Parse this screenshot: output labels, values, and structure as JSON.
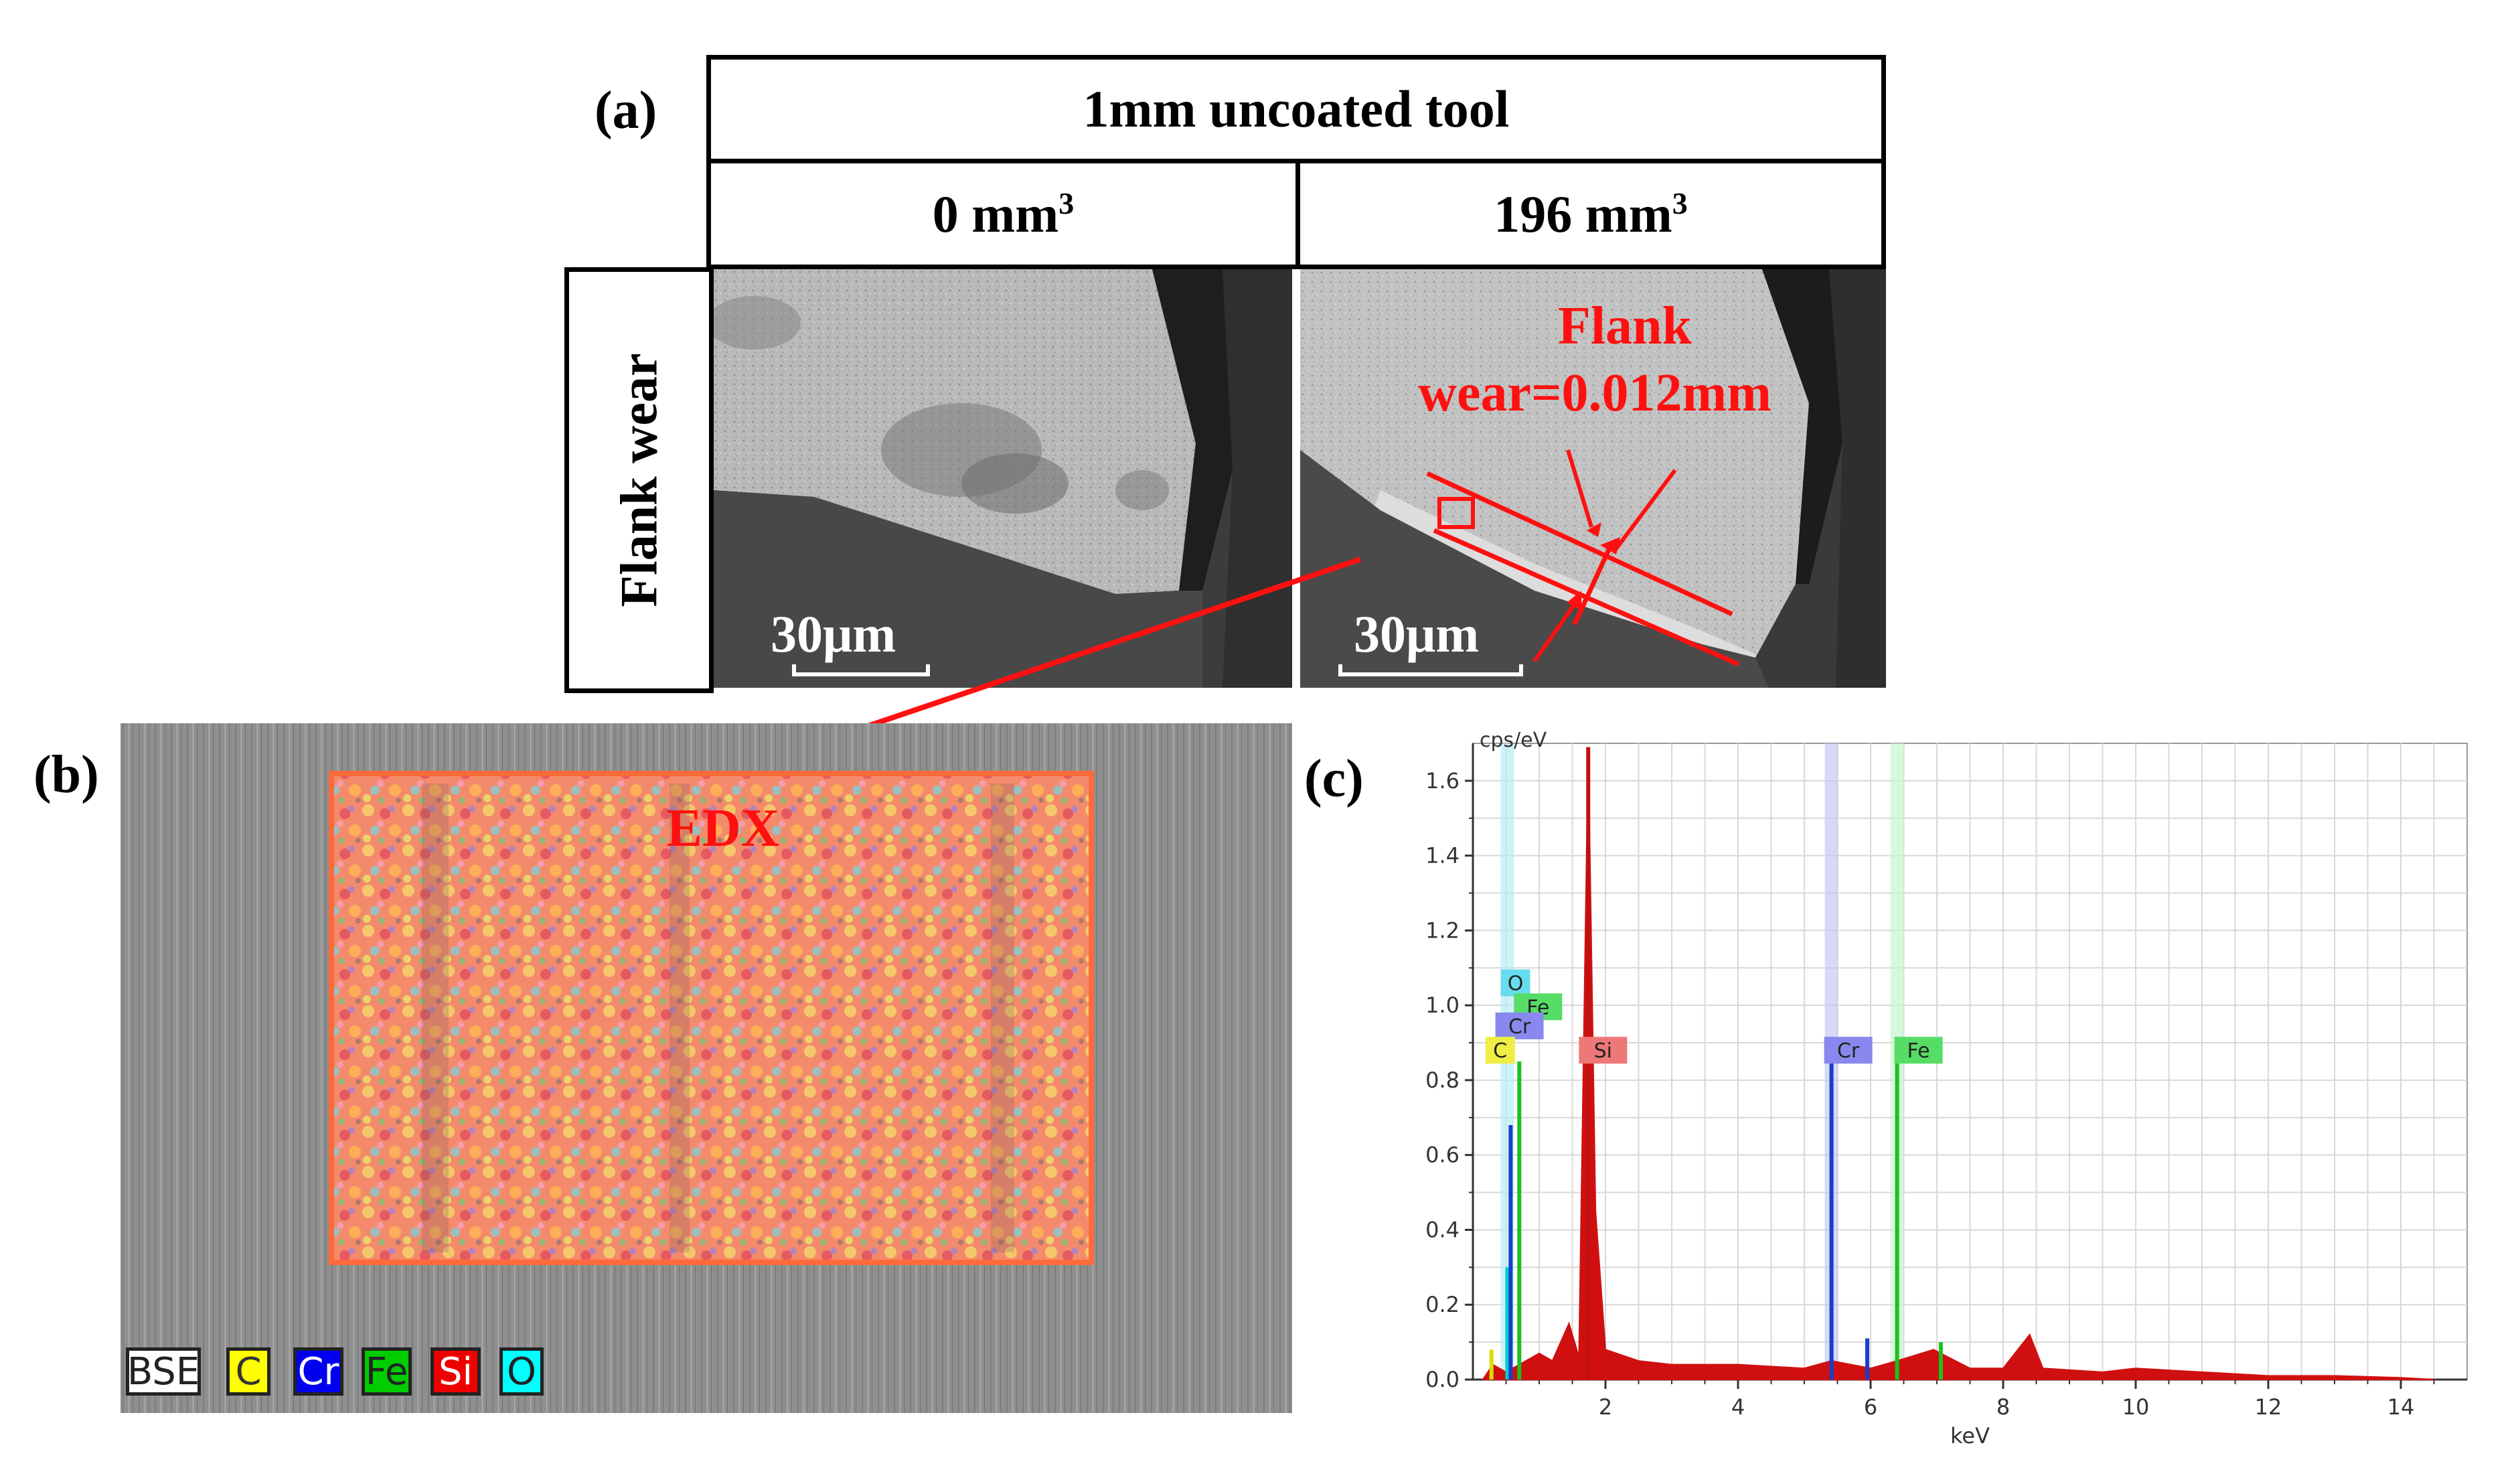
{
  "panel_labels": {
    "a": "(a)",
    "b": "(b)",
    "c": "(c)"
  },
  "table": {
    "header": "1mm uncoated tool",
    "volume_0": "0 mm",
    "volume_196": "196 mm",
    "superscript": "3",
    "row_label": "Flank wear"
  },
  "sem": {
    "scale_left": "30μm",
    "scale_right": "30μm",
    "flank_line1": "Flank",
    "flank_line2": "wear=0.012mm"
  },
  "edx": {
    "label": "EDX",
    "legend": [
      {
        "label": "BSE",
        "color": "#ffffff",
        "text_color": "#222222"
      },
      {
        "label": "C",
        "color": "#ffff00",
        "text_color": "#333333"
      },
      {
        "label": "Cr",
        "color": "#0000ee",
        "text_color": "#ffffff"
      },
      {
        "label": "Fe",
        "color": "#00cc00",
        "text_color": "#222222"
      },
      {
        "label": "Si",
        "color": "#ee0000",
        "text_color": "#ffffff"
      },
      {
        "label": "O",
        "color": "#00ffff",
        "text_color": "#222222"
      }
    ]
  },
  "chart_data": {
    "type": "line",
    "title": "",
    "xlabel": "keV",
    "ylabel": "cps/eV",
    "xlim": [
      0,
      15
    ],
    "ylim": [
      0,
      1.7
    ],
    "xticks": [
      2,
      4,
      6,
      8,
      10,
      12,
      14
    ],
    "yticks": [
      0.0,
      0.2,
      0.4,
      0.6,
      0.8,
      1.0,
      1.2,
      1.4,
      1.6
    ],
    "ytick_labels": [
      "0.0",
      "0.2",
      "0.4",
      "0.6",
      "0.8",
      "1.0",
      "1.2",
      "1.4",
      "1.6"
    ],
    "peaks": [
      {
        "element": "C",
        "energy": 0.28,
        "height": 0.08,
        "color": "#dddd00"
      },
      {
        "element": "O",
        "energy": 0.52,
        "height": 0.3,
        "color": "#00cccc"
      },
      {
        "element": "Cr",
        "energy": 0.57,
        "height": 0.68,
        "color": "#1a3ec8"
      },
      {
        "element": "Fe",
        "energy": 0.7,
        "height": 0.85,
        "color": "#19c21e"
      },
      {
        "element": "Si",
        "energy": 1.74,
        "height": 1.69,
        "color": "#c01010"
      },
      {
        "element": "Cr",
        "energy": 5.41,
        "height": 0.86,
        "color": "#1a3ec8"
      },
      {
        "element": "Fe",
        "energy": 6.4,
        "height": 0.85,
        "color": "#19c21e"
      },
      {
        "element": "Cr",
        "energy": 5.95,
        "height": 0.11,
        "color": "#1a3ec8"
      },
      {
        "element": "Fe",
        "energy": 7.06,
        "height": 0.1,
        "color": "#19c21e"
      }
    ],
    "background_series": {
      "name": "spectrum",
      "color": "#d01010",
      "points": [
        [
          0.15,
          0.0
        ],
        [
          0.3,
          0.04
        ],
        [
          0.5,
          0.02
        ],
        [
          0.8,
          0.05
        ],
        [
          1.0,
          0.07
        ],
        [
          1.2,
          0.05
        ],
        [
          1.45,
          0.15
        ],
        [
          1.6,
          0.06
        ],
        [
          1.74,
          1.69
        ],
        [
          1.85,
          0.45
        ],
        [
          2.0,
          0.08
        ],
        [
          2.5,
          0.05
        ],
        [
          3.0,
          0.04
        ],
        [
          4.0,
          0.04
        ],
        [
          5.0,
          0.03
        ],
        [
          5.41,
          0.05
        ],
        [
          6.0,
          0.03
        ],
        [
          6.4,
          0.05
        ],
        [
          6.95,
          0.08
        ],
        [
          7.5,
          0.03
        ],
        [
          8.0,
          0.03
        ],
        [
          8.4,
          0.12
        ],
        [
          8.6,
          0.03
        ],
        [
          9.5,
          0.02
        ],
        [
          10.0,
          0.03
        ],
        [
          11.0,
          0.02
        ],
        [
          12.0,
          0.01
        ],
        [
          13.0,
          0.01
        ],
        [
          14.0,
          0.005
        ],
        [
          14.5,
          0.0
        ]
      ]
    },
    "label_boxes": [
      {
        "text": "O",
        "energy": 0.48,
        "y": 1.06,
        "color": "#66ddee"
      },
      {
        "text": "Fe",
        "energy": 0.68,
        "y": 0.996,
        "color": "#55dd66"
      },
      {
        "text": "Cr",
        "energy": 0.4,
        "y": 0.945,
        "color": "#8888ee"
      },
      {
        "text": "C",
        "energy": 0.25,
        "y": 0.88,
        "color": "#eeee44"
      },
      {
        "text": "Si",
        "energy": 1.66,
        "y": 0.88,
        "color": "#ee7777"
      },
      {
        "text": "Cr",
        "energy": 5.36,
        "y": 0.88,
        "color": "#8888ee"
      },
      {
        "text": "Fe",
        "energy": 6.42,
        "y": 0.88,
        "color": "#55dd66"
      }
    ]
  }
}
